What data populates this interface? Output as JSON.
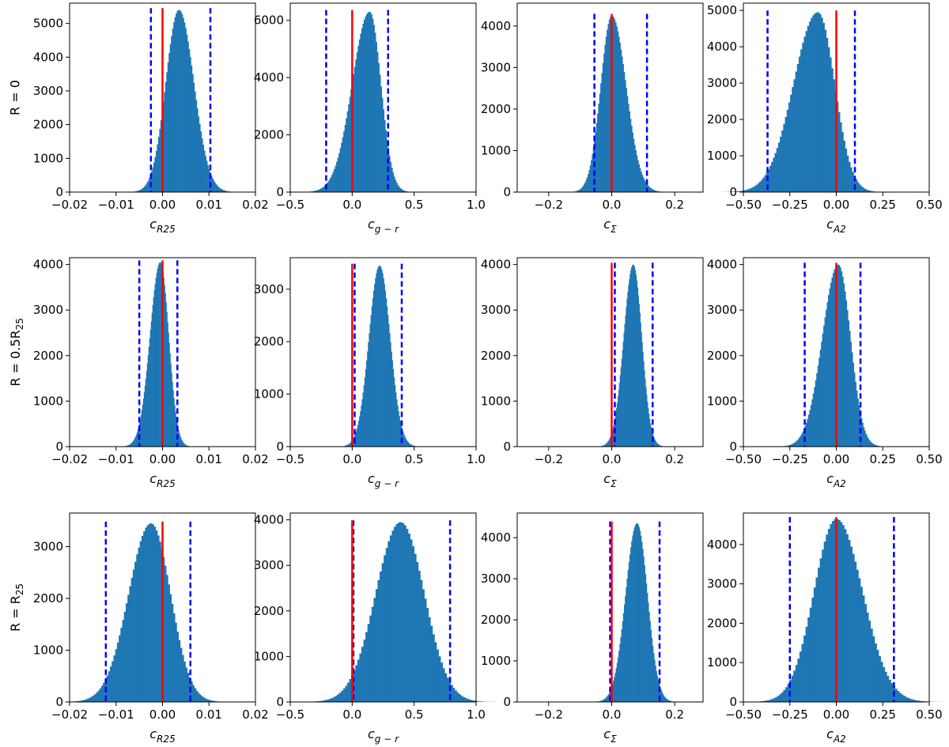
{
  "figure": {
    "rows": [
      {
        "label": "R = 0"
      },
      {
        "label": "R = 0.5R25",
        "label_main": "R = 0.5R",
        "label_sub": "25"
      },
      {
        "label": "R = R25",
        "label_main": "R = R",
        "label_sub": "25"
      }
    ],
    "colors": {
      "hist": "#1f77b4",
      "zero_line": "#ff0000",
      "ci_line": "#0000ff",
      "frame": "#000000"
    }
  },
  "chart_data": [
    {
      "type": "bar",
      "row": 0,
      "col": 0,
      "xlabel": "c_R25",
      "xlabel_main": "c",
      "xlabel_sub": "R25",
      "xlim": [
        -0.02,
        0.02
      ],
      "xticks": [
        "−0.02",
        "−0.01",
        "0.00",
        "0.01",
        "0.02"
      ],
      "xtick_values": [
        -0.02,
        -0.01,
        0,
        0.01,
        0.02
      ],
      "ylim": [
        0,
        5600
      ],
      "yticks": [
        0,
        1000,
        2000,
        3000,
        4000,
        5000
      ],
      "dist": {
        "center": 0.0035,
        "sigma_left": 0.0028,
        "sigma_right": 0.0032,
        "peak": 5400,
        "nbins": 100
      },
      "zero_line": 0.0,
      "ci_lines": [
        -0.0025,
        0.0103
      ]
    },
    {
      "type": "bar",
      "row": 0,
      "col": 1,
      "xlabel": "c_g-r",
      "xlabel_main": "c",
      "xlabel_sub": "g − r",
      "xlim": [
        -0.5,
        1.0
      ],
      "xticks": [
        "−0.5",
        "0.0",
        "0.5",
        "1.0"
      ],
      "xtick_values": [
        -0.5,
        0,
        0.5,
        1.0
      ],
      "ylim": [
        0,
        6600
      ],
      "yticks": [
        0,
        2000,
        4000,
        6000
      ],
      "dist": {
        "center": 0.14,
        "sigma_left": 0.14,
        "sigma_right": 0.09,
        "peak": 6300,
        "nbins": 100
      },
      "zero_line": 0.0,
      "ci_lines": [
        -0.21,
        0.29
      ]
    },
    {
      "type": "bar",
      "row": 0,
      "col": 2,
      "xlabel": "c_Σ",
      "xlabel_main": "c",
      "xlabel_sub": "Σ",
      "xlim": [
        -0.3,
        0.29
      ],
      "xticks": [
        "−0.2",
        "0.0",
        "0.2"
      ],
      "xtick_values": [
        -0.2,
        0,
        0.2
      ],
      "ylim": [
        0,
        4550
      ],
      "yticks": [
        0,
        1000,
        2000,
        3000,
        4000
      ],
      "dist": {
        "center": 0.0,
        "sigma_left": 0.035,
        "sigma_right": 0.045,
        "peak": 4250,
        "nbins": 100
      },
      "zero_line": 0.0,
      "ci_lines": [
        -0.055,
        0.112
      ]
    },
    {
      "type": "bar",
      "row": 0,
      "col": 3,
      "xlabel": "c_A2",
      "xlabel_main": "c",
      "xlabel_sub": "A2",
      "xlim": [
        -0.5,
        0.5
      ],
      "xticks": [
        "−0.50",
        "−0.25",
        "0.00",
        "0.25",
        "0.50"
      ],
      "xtick_values": [
        -0.5,
        -0.25,
        0,
        0.25,
        0.5
      ],
      "ylim": [
        0,
        5200
      ],
      "yticks": [
        0,
        1000,
        2000,
        3000,
        4000,
        5000
      ],
      "dist": {
        "center": -0.1,
        "sigma_left": 0.13,
        "sigma_right": 0.09,
        "peak": 4950,
        "nbins": 100
      },
      "zero_line": 0.0,
      "ci_lines": [
        -0.37,
        0.1
      ]
    },
    {
      "type": "bar",
      "row": 1,
      "col": 0,
      "xlabel": "c_R25",
      "xlabel_main": "c",
      "xlabel_sub": "R25",
      "xlim": [
        -0.02,
        0.02
      ],
      "xticks": [
        "−0.02",
        "−0.01",
        "0.00",
        "0.01",
        "0.02"
      ],
      "xtick_values": [
        -0.02,
        -0.01,
        0,
        0.01,
        0.02
      ],
      "ylim": [
        0,
        4150
      ],
      "yticks": [
        0,
        1000,
        2000,
        3000,
        4000
      ],
      "dist": {
        "center": -0.0005,
        "sigma_left": 0.0022,
        "sigma_right": 0.0018,
        "peak": 4050,
        "nbins": 100
      },
      "zero_line": 0.0,
      "ci_lines": [
        -0.005,
        0.0032
      ]
    },
    {
      "type": "bar",
      "row": 1,
      "col": 1,
      "xlabel": "c_g-r",
      "xlabel_main": "c",
      "xlabel_sub": "g − r",
      "xlim": [
        -0.5,
        1.0
      ],
      "xticks": [
        "−0.5",
        "0.0",
        "0.5",
        "1.0"
      ],
      "xtick_values": [
        -0.5,
        0,
        0.5,
        1.0
      ],
      "ylim": [
        0,
        3600
      ],
      "yticks": [
        0,
        1000,
        2000,
        3000
      ],
      "dist": {
        "center": 0.22,
        "sigma_left": 0.085,
        "sigma_right": 0.085,
        "peak": 3450,
        "nbins": 100
      },
      "zero_line": 0.0,
      "ci_lines": [
        0.02,
        0.4
      ]
    },
    {
      "type": "bar",
      "row": 1,
      "col": 2,
      "xlabel": "c_Σ",
      "xlabel_main": "c",
      "xlabel_sub": "Σ",
      "xlim": [
        -0.3,
        0.29
      ],
      "xticks": [
        "−0.2",
        "0.0",
        "0.2"
      ],
      "xtick_values": [
        -0.2,
        0,
        0.2
      ],
      "ylim": [
        0,
        4150
      ],
      "yticks": [
        0,
        1000,
        2000,
        3000,
        4000
      ],
      "dist": {
        "center": 0.068,
        "sigma_left": 0.03,
        "sigma_right": 0.027,
        "peak": 4000,
        "nbins": 100
      },
      "zero_line": 0.0,
      "ci_lines": [
        0.01,
        0.13
      ]
    },
    {
      "type": "bar",
      "row": 1,
      "col": 3,
      "xlabel": "c_A2",
      "xlabel_main": "c",
      "xlabel_sub": "A2",
      "xlim": [
        -0.5,
        0.5
      ],
      "xticks": [
        "−0.50",
        "−0.25",
        "0.00",
        "0.25",
        "0.50"
      ],
      "xtick_values": [
        -0.5,
        -0.25,
        0,
        0.25,
        0.5
      ],
      "ylim": [
        0,
        4150
      ],
      "yticks": [
        0,
        1000,
        2000,
        3000,
        4000
      ],
      "dist": {
        "center": 0.01,
        "sigma_left": 0.085,
        "sigma_right": 0.065,
        "peak": 4000,
        "nbins": 100
      },
      "zero_line": 0.0,
      "ci_lines": [
        -0.17,
        0.13
      ]
    },
    {
      "type": "bar",
      "row": 2,
      "col": 0,
      "xlabel": "c_R25",
      "xlabel_main": "c",
      "xlabel_sub": "R25",
      "xlim": [
        -0.02,
        0.02
      ],
      "xticks": [
        "−0.02",
        "−0.01",
        "0.00",
        "0.01",
        "0.02"
      ],
      "xtick_values": [
        -0.02,
        -0.01,
        0,
        0.01,
        0.02
      ],
      "ylim": [
        0,
        3650
      ],
      "yticks": [
        0,
        1000,
        2000,
        3000
      ],
      "dist": {
        "center": -0.0025,
        "sigma_left": 0.0048,
        "sigma_right": 0.0042,
        "peak": 3450,
        "nbins": 100
      },
      "zero_line": 0.0,
      "ci_lines": [
        -0.0122,
        0.006
      ]
    },
    {
      "type": "bar",
      "row": 2,
      "col": 1,
      "xlabel": "c_g-r",
      "xlabel_main": "c",
      "xlabel_sub": "g − r",
      "xlim": [
        -0.5,
        1.0
      ],
      "xticks": [
        "−0.5",
        "0.0",
        "0.5",
        "1.0"
      ],
      "xtick_values": [
        -0.5,
        0,
        0.5,
        1.0
      ],
      "ylim": [
        0,
        4150
      ],
      "yticks": [
        0,
        1000,
        2000,
        3000,
        4000
      ],
      "dist": {
        "center": 0.39,
        "sigma_left": 0.2,
        "sigma_right": 0.19,
        "peak": 3950,
        "nbins": 100
      },
      "zero_line": 0.0,
      "ci_lines": [
        0.01,
        0.79
      ]
    },
    {
      "type": "bar",
      "row": 2,
      "col": 2,
      "xlabel": "c_Σ",
      "xlabel_main": "c",
      "xlabel_sub": "Σ",
      "xlim": [
        -0.3,
        0.29
      ],
      "xticks": [
        "−0.2",
        "0.0",
        "0.2"
      ],
      "xtick_values": [
        -0.2,
        0,
        0.2
      ],
      "ylim": [
        0,
        4600
      ],
      "yticks": [
        0,
        1000,
        2000,
        3000,
        4000
      ],
      "dist": {
        "center": 0.08,
        "sigma_left": 0.036,
        "sigma_right": 0.033,
        "peak": 4350,
        "nbins": 100
      },
      "zero_line": 0.0,
      "ci_lines": [
        -0.005,
        0.152
      ]
    },
    {
      "type": "bar",
      "row": 2,
      "col": 3,
      "xlabel": "c_A2",
      "xlabel_main": "c",
      "xlabel_sub": "A2",
      "xlim": [
        -0.5,
        0.5
      ],
      "xticks": [
        "−0.50",
        "−0.25",
        "0.00",
        "0.25",
        "0.50"
      ],
      "xtick_values": [
        -0.5,
        -0.25,
        0,
        0.25,
        0.5
      ],
      "ylim": [
        0,
        4800
      ],
      "yticks": [
        0,
        1000,
        2000,
        3000,
        4000
      ],
      "dist": {
        "center": 0.0,
        "sigma_left": 0.12,
        "sigma_right": 0.14,
        "peak": 4650,
        "nbins": 100
      },
      "zero_line": 0.0,
      "ci_lines": [
        -0.25,
        0.31
      ]
    }
  ]
}
